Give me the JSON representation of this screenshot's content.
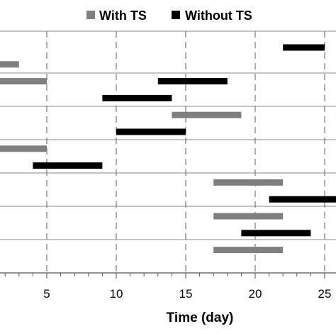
{
  "chart_data": {
    "type": "bar",
    "orientation": "horizontal-gantt",
    "title": "",
    "xlabel": "Time (day)",
    "ylabel": "",
    "xlim": [
      -3,
      25.5
    ],
    "xticks": [
      5,
      10,
      15,
      20,
      25
    ],
    "grid": {
      "vertical": "dashed",
      "horizontal": "solid"
    },
    "legend": {
      "position": "top",
      "entries": [
        "With TS",
        "Without TS"
      ]
    },
    "series": [
      {
        "name": "With TS",
        "color": "#7f7f7f",
        "bars": [
          {
            "row": 1,
            "start": -3,
            "end": 3
          },
          {
            "row": 2,
            "start": -3,
            "end": 5
          },
          {
            "row": 4,
            "start": 14,
            "end": 19
          },
          {
            "row": 6,
            "start": -3,
            "end": 5
          },
          {
            "row": 8,
            "start": 17,
            "end": 22
          },
          {
            "row": 10,
            "start": 17,
            "end": 22
          },
          {
            "row": 12,
            "start": 17,
            "end": 22
          }
        ]
      },
      {
        "name": "Without TS",
        "color": "#000000",
        "bars": [
          {
            "row": 0,
            "start": 22,
            "end": 25
          },
          {
            "row": 2,
            "start": 13,
            "end": 18
          },
          {
            "row": 3,
            "start": 9,
            "end": 14
          },
          {
            "row": 5,
            "start": 10,
            "end": 15
          },
          {
            "row": 7,
            "start": 4,
            "end": 9
          },
          {
            "row": 9,
            "start": 21,
            "end": 26
          },
          {
            "row": 11,
            "start": 19,
            "end": 24
          }
        ]
      }
    ]
  }
}
